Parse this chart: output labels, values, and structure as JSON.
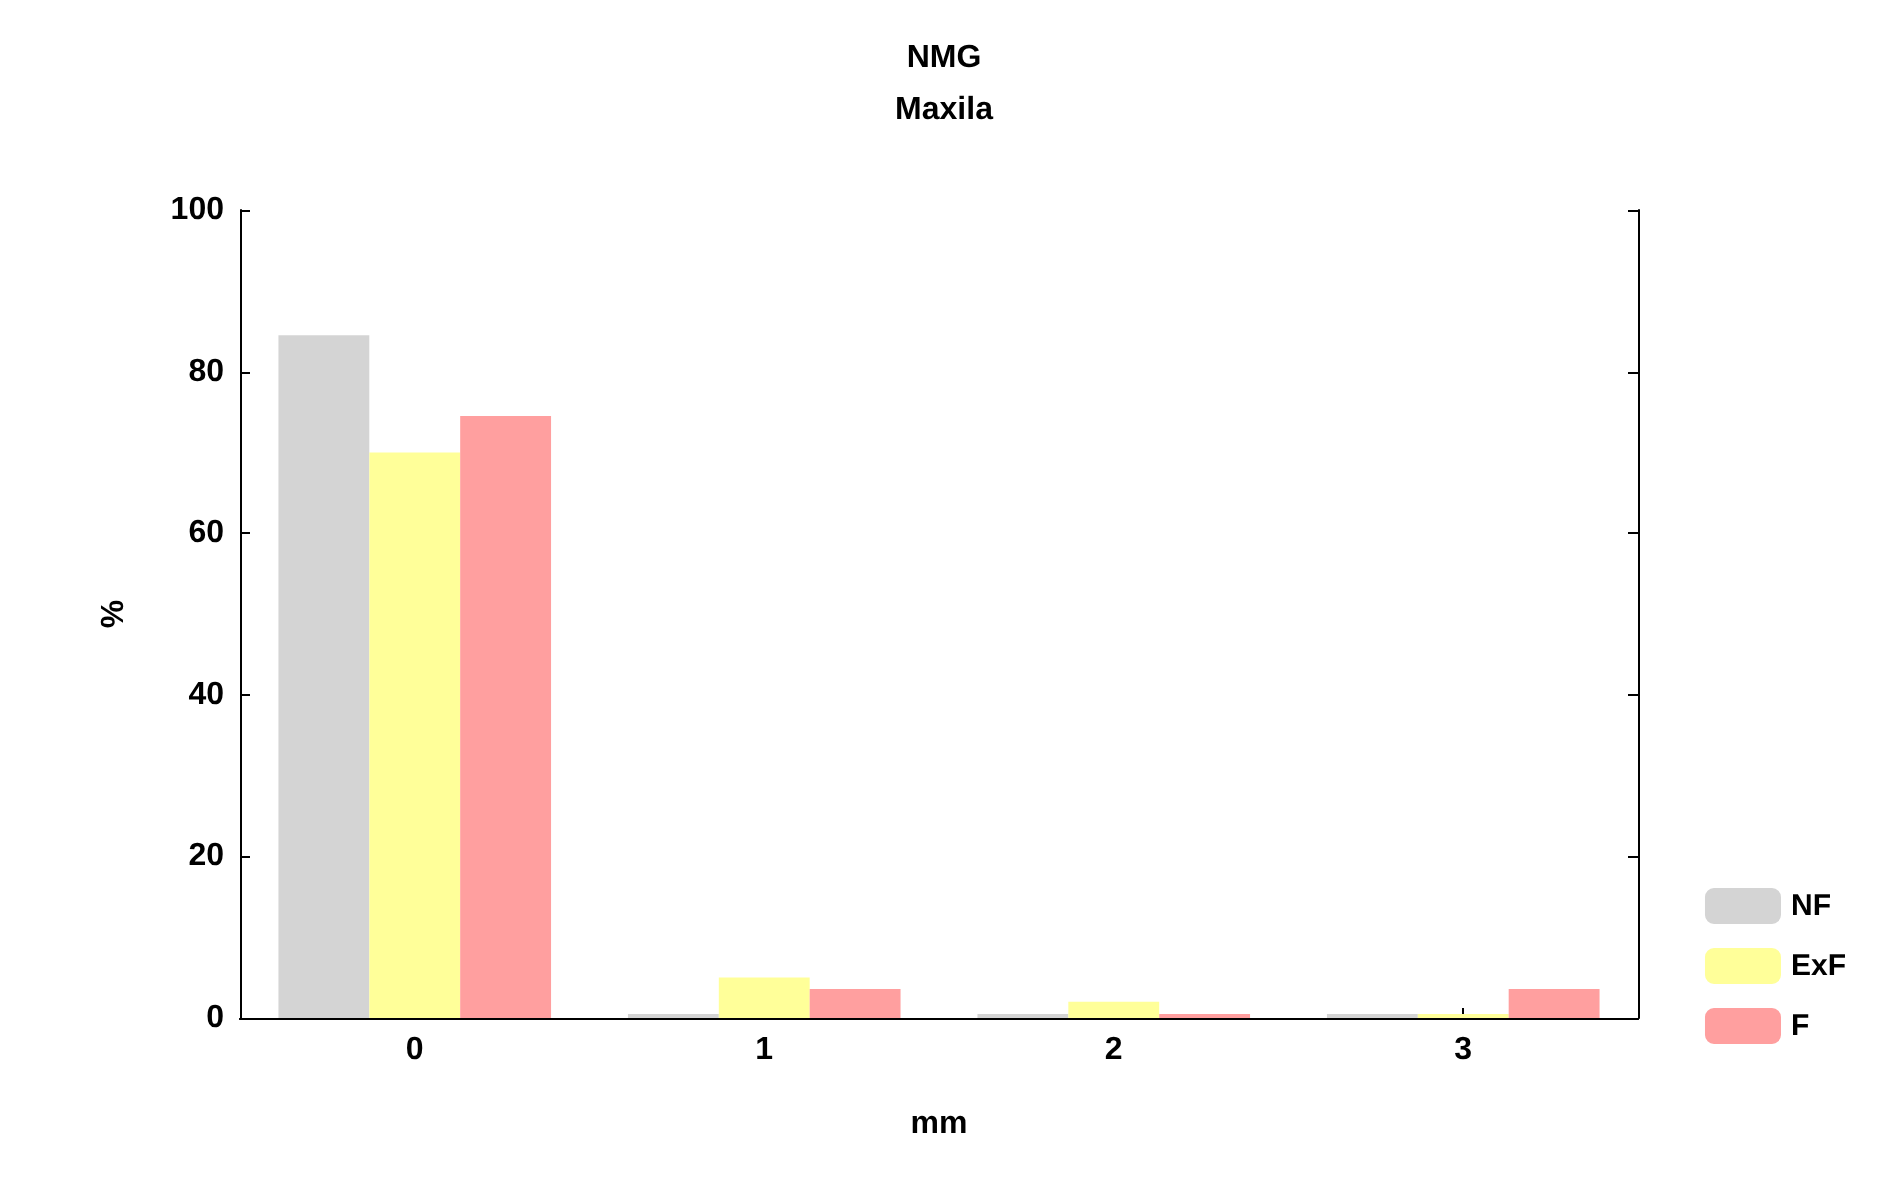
{
  "chart_data": {
    "type": "bar",
    "title": "NMG",
    "subtitle": "Maxila",
    "xlabel": "mm",
    "ylabel": "%",
    "categories": [
      "0",
      "1",
      "2",
      "3"
    ],
    "series": [
      {
        "name": "NF",
        "color": "#d4d4d4",
        "values": [
          84.5,
          0.5,
          0.5,
          0.5
        ]
      },
      {
        "name": "ExF",
        "color": "#ffff99",
        "values": [
          70,
          5,
          2,
          0.5
        ]
      },
      {
        "name": "F",
        "color": "#ff9f9f",
        "values": [
          74.5,
          3.6,
          0.5,
          3.6
        ]
      }
    ],
    "ylim": [
      0,
      100
    ],
    "yticks": [
      0,
      20,
      40,
      60,
      80,
      100
    ],
    "grid": false,
    "legend": "bottom right"
  }
}
